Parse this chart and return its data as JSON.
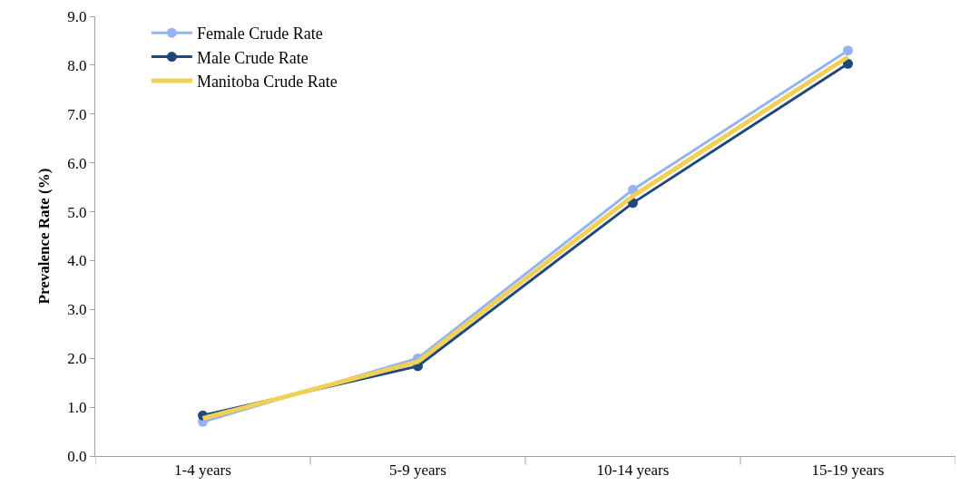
{
  "chart_data": {
    "type": "line",
    "ylabel": "Prevalence Rate (%)",
    "categories": [
      "1-4 years",
      "5-9 years",
      "10-14 years",
      "15-19 years"
    ],
    "series": [
      {
        "name": "Female Crude Rate",
        "color": "#95b3f0",
        "values": [
          0.7,
          2.0,
          5.45,
          8.3
        ],
        "marker": "circle"
      },
      {
        "name": "Male Crude Rate",
        "color": "#1f497d",
        "values": [
          0.83,
          1.84,
          5.18,
          8.03
        ],
        "marker": "circle"
      },
      {
        "name": "Manitoba Crude Rate",
        "color": "#f2d056",
        "values": [
          0.77,
          1.93,
          5.32,
          8.17
        ],
        "marker": "none"
      }
    ],
    "ylim": [
      0,
      9
    ],
    "yticks": [
      {
        "value": 0,
        "label": "0.0"
      },
      {
        "value": 1,
        "label": "1.0"
      },
      {
        "value": 2,
        "label": "2.0"
      },
      {
        "value": 3,
        "label": "3.0"
      },
      {
        "value": 4,
        "label": "4.0"
      },
      {
        "value": 5,
        "label": "5.0"
      },
      {
        "value": 6,
        "label": "6.0"
      },
      {
        "value": 7,
        "label": "7.0"
      },
      {
        "value": 8,
        "label": "8.0"
      },
      {
        "value": 9,
        "label": "9.0"
      }
    ],
    "legend": "top left"
  }
}
